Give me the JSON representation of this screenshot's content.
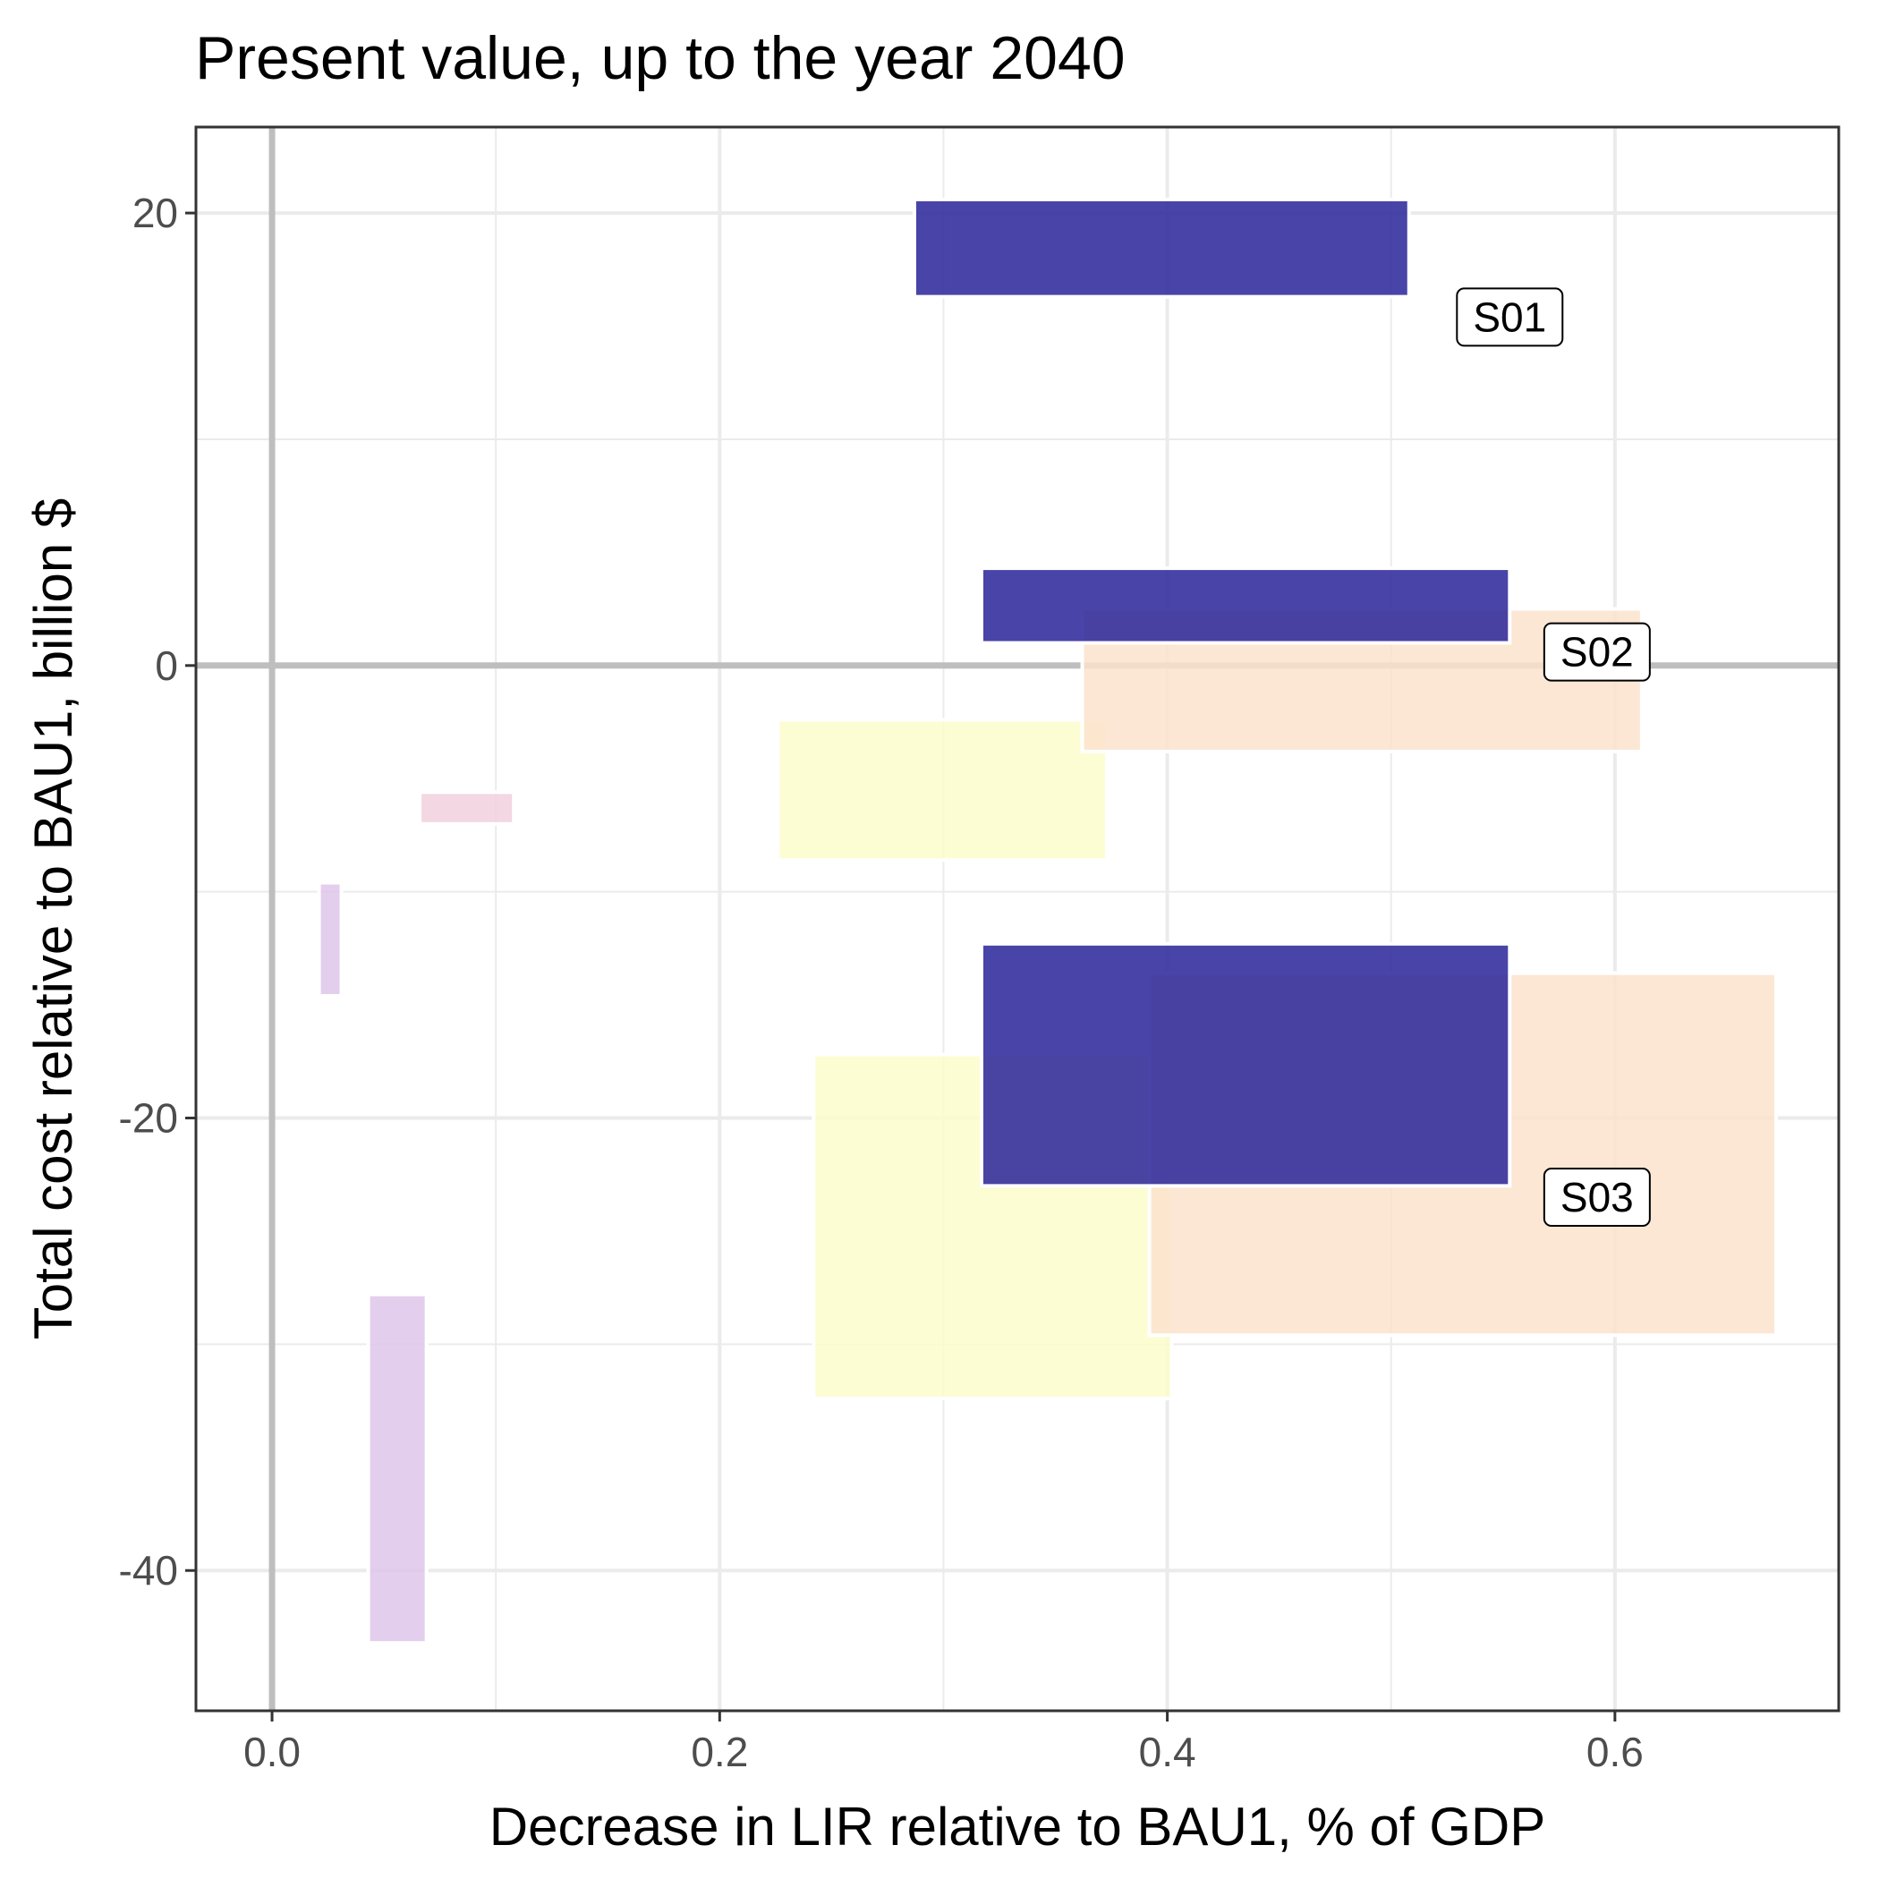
{
  "chart_data": {
    "type": "bar",
    "title": "Present value, up to the year 2040",
    "xlabel": "Decrease in LIR relative to BAU1, % of GDP",
    "ylabel": "Total cost relative to BAU1, billion $",
    "xlim": [
      -0.034,
      0.7
    ],
    "ylim": [
      -46.2,
      23.8
    ],
    "xticks": [
      0.0,
      0.2,
      0.4,
      0.6
    ],
    "xtick_labels": [
      "0.0",
      "0.2",
      "0.4",
      "0.6"
    ],
    "yticks": [
      20,
      0,
      -20,
      -40
    ],
    "ytick_labels": [
      "20",
      "0",
      "-20",
      "-40"
    ],
    "grid": true,
    "legend": "none",
    "colors": {
      "navy": "#302a9b",
      "peach": "#fbe3cd",
      "lightyellow": "#fbfdcb",
      "pink": "#f1d0de",
      "lavender": "#dfc5ea",
      "grid": "#ebebeb",
      "zero_line": "#bebebe"
    },
    "series": [
      {
        "values": [
          {
            "scenario": "S01",
            "xmin": 0.287,
            "xmax": 0.508,
            "ymin": 16.3,
            "ymax": 20.6
          },
          {
            "scenario": "S02",
            "xmin": 0.317,
            "xmax": 0.553,
            "ymin": 1.0,
            "ymax": 4.3
          },
          {
            "scenario": "S03",
            "xmin": 0.317,
            "xmax": 0.553,
            "ymin": -23.0,
            "ymax": -12.3
          }
        ],
        "color": "navy"
      },
      {
        "values": [
          {
            "xmin": 0.362,
            "xmax": 0.612,
            "ymin": -3.8,
            "ymax": 2.5
          },
          {
            "xmin": 0.392,
            "xmax": 0.672,
            "ymin": -29.6,
            "ymax": -13.6
          }
        ],
        "color": "peach"
      },
      {
        "values": [
          {
            "xmin": 0.226,
            "xmax": 0.373,
            "ymin": -8.6,
            "ymax": -2.4
          },
          {
            "xmin": 0.242,
            "xmax": 0.402,
            "ymin": -32.4,
            "ymax": -17.2
          }
        ],
        "color": "lightyellow"
      },
      {
        "values": [
          {
            "xmin": 0.066,
            "xmax": 0.108,
            "ymin": -7.0,
            "ymax": -5.6
          }
        ],
        "color": "pink"
      },
      {
        "values": [
          {
            "xmin": 0.021,
            "xmax": 0.031,
            "ymin": -14.6,
            "ymax": -9.6
          },
          {
            "xmin": 0.043,
            "xmax": 0.069,
            "ymin": -43.2,
            "ymax": -27.8
          }
        ],
        "color": "lavender"
      }
    ],
    "labels": [
      {
        "text": "S01",
        "x": 0.553,
        "y": 15.4
      },
      {
        "text": "S02",
        "x": 0.592,
        "y": 0.6
      },
      {
        "text": "S03",
        "x": 0.592,
        "y": -23.5
      }
    ]
  }
}
